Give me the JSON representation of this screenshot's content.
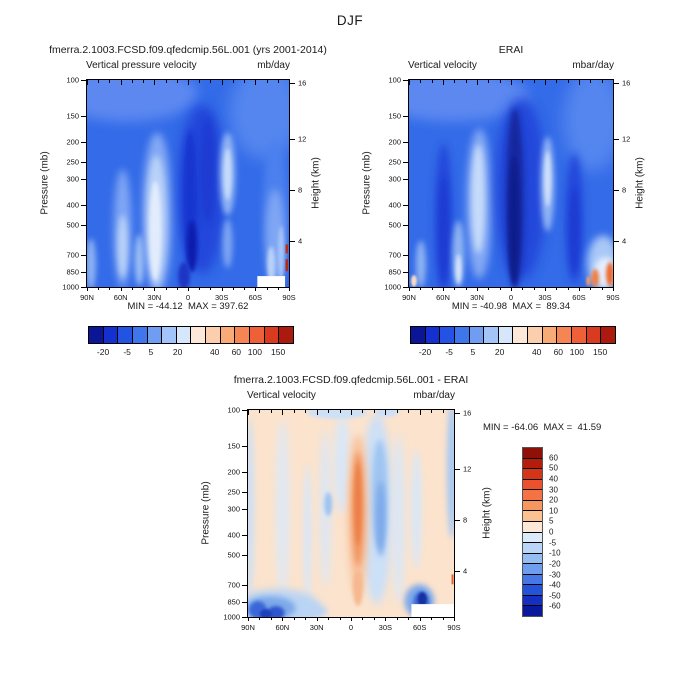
{
  "page_title": "DJF",
  "axes": {
    "pressure_label": "Pressure (mb)",
    "height_label": "Height (km)",
    "pressure_ticks": [
      100,
      150,
      200,
      250,
      300,
      400,
      500,
      700,
      850,
      1000
    ],
    "height_ticks": [
      16,
      12,
      8,
      4
    ],
    "lat_labels": [
      "90N",
      "60N",
      "30N",
      "0",
      "30S",
      "60S",
      "90S"
    ]
  },
  "panels": [
    {
      "id": "model",
      "title": "fmerra.2.1003.FCSD.f09.qfedcmip.56L.001 (yrs 2001-2014)",
      "subtitle_left": "Vertical pressure velocity",
      "subtitle_right": "mb/day",
      "stats": "MIN = -44.12  MAX = 397.62",
      "min": -44.12,
      "max": 397.62
    },
    {
      "id": "erai",
      "title": "ERAI",
      "subtitle_left": "Vertical velocity",
      "subtitle_right": "mbar/day",
      "stats": "MIN = -40.98  MAX =  89.34",
      "min": -40.98,
      "max": 89.34
    },
    {
      "id": "difference",
      "title": "fmerra.2.1003.FCSD.f09.qfedcmip.56L.001 - ERAI",
      "subtitle_left": "Vertical velocity",
      "subtitle_right": "mbar/day",
      "stats": "MIN = -64.06  MAX =  41.59",
      "min": -64.06,
      "max": 41.59
    }
  ],
  "colorbar_horizontal": {
    "colors": [
      "#0b1697",
      "#1430cf",
      "#2353e2",
      "#3f76ec",
      "#6f9df2",
      "#a3c4f8",
      "#d6e6fb",
      "#fde8d7",
      "#fbcfae",
      "#f9ab77",
      "#f58653",
      "#ee6038",
      "#d83b20",
      "#aa1a0f"
    ],
    "tick_labels": [
      "-20",
      "-5",
      "5",
      "20",
      "40",
      "60",
      "100",
      "150"
    ],
    "tick_pos_pct": [
      7.3,
      19,
      30.5,
      43.5,
      61.5,
      72,
      81,
      92.3
    ]
  },
  "colorbar_vertical": {
    "colors": [
      "#8e1006",
      "#b41d0c",
      "#d43418",
      "#ea512c",
      "#f37345",
      "#f79760",
      "#fbc191",
      "#fde8d7",
      "#dcebfa",
      "#b9d6f8",
      "#94bdf4",
      "#6e9cef",
      "#4577e6",
      "#2353d9",
      "#142fc2",
      "#0a189e"
    ],
    "tick_labels": [
      "60",
      "50",
      "40",
      "30",
      "20",
      "10",
      "5",
      "0",
      "-5",
      "-10",
      "-20",
      "-30",
      "-40",
      "-50",
      "-60"
    ]
  },
  "chart_data": [
    {
      "type": "heatmap",
      "title": "fmerra.2.1003.FCSD.f09.qfedcmip.56L.001 (yrs 2001-2014)",
      "variable": "Vertical pressure velocity",
      "units": "mb/day",
      "season": "DJF",
      "x_axis": "Latitude",
      "x_ticks": [
        "90N",
        "60N",
        "30N",
        "0",
        "30S",
        "60S",
        "90S"
      ],
      "y_axis": "Pressure (mb)",
      "y_scale": "log",
      "y_range": [
        100,
        1000
      ],
      "y_ticks": [
        100,
        150,
        200,
        250,
        300,
        400,
        500,
        700,
        850,
        1000
      ],
      "y2_axis": "Height (km)",
      "y2_ticks": [
        16,
        12,
        8,
        4
      ],
      "contour_labels": [
        -20,
        -5,
        5,
        20,
        40,
        60,
        100,
        150
      ],
      "min": -44.12,
      "max": 397.62,
      "lat_grid": [
        "90N",
        "75N",
        "60N",
        "45N",
        "30N",
        "15N",
        "0",
        "15S",
        "30S",
        "45S",
        "60S",
        "75S",
        "90S"
      ],
      "pressure_grid": [
        100,
        200,
        300,
        500,
        700,
        850,
        1000
      ],
      "values": [
        [
          -5,
          -5,
          -8,
          -5,
          -5,
          -10,
          -12,
          -12,
          -8,
          -5,
          -5,
          -5,
          -5
        ],
        [
          -8,
          -5,
          0,
          -5,
          10,
          -15,
          -25,
          -20,
          0,
          -8,
          -8,
          -3,
          -8
        ],
        [
          -8,
          -5,
          3,
          -3,
          20,
          -15,
          -30,
          -25,
          10,
          -10,
          -8,
          3,
          -8
        ],
        [
          -8,
          -3,
          5,
          0,
          25,
          -12,
          -35,
          -20,
          10,
          -8,
          -5,
          8,
          -5
        ],
        [
          -5,
          -2,
          8,
          5,
          22,
          -10,
          -44,
          -15,
          5,
          -5,
          -3,
          10,
          30
        ],
        [
          -3,
          0,
          10,
          8,
          20,
          -8,
          -35,
          -10,
          3,
          -5,
          -3,
          15,
          150
        ],
        [
          -2,
          2,
          8,
          5,
          15,
          -5,
          -20,
          -8,
          2,
          -3,
          -2,
          20,
          398
        ]
      ]
    },
    {
      "type": "heatmap",
      "title": "ERAI",
      "variable": "Vertical velocity",
      "units": "mbar/day",
      "season": "DJF",
      "x_axis": "Latitude",
      "x_ticks": [
        "90N",
        "60N",
        "30N",
        "0",
        "30S",
        "60S",
        "90S"
      ],
      "y_axis": "Pressure (mb)",
      "y_scale": "log",
      "y_range": [
        100,
        1000
      ],
      "y_ticks": [
        100,
        150,
        200,
        250,
        300,
        400,
        500,
        700,
        850,
        1000
      ],
      "y2_axis": "Height (km)",
      "y2_ticks": [
        16,
        12,
        8,
        4
      ],
      "contour_labels": [
        -20,
        -5,
        5,
        20,
        40,
        60,
        100,
        150
      ],
      "min": -40.98,
      "max": 89.34,
      "lat_grid": [
        "90N",
        "75N",
        "60N",
        "45N",
        "30N",
        "15N",
        "0",
        "15S",
        "30S",
        "45S",
        "60S",
        "75S",
        "90S"
      ],
      "pressure_grid": [
        100,
        200,
        300,
        500,
        700,
        850,
        1000
      ],
      "values": [
        [
          -5,
          -5,
          -8,
          -5,
          -5,
          -12,
          -15,
          -12,
          -8,
          -5,
          -5,
          -5,
          -5
        ],
        [
          -8,
          -5,
          -10,
          -3,
          8,
          -18,
          -30,
          -18,
          0,
          -8,
          -10,
          -3,
          -5
        ],
        [
          -8,
          -5,
          -15,
          -2,
          15,
          -20,
          -38,
          -20,
          8,
          -10,
          -15,
          0,
          -5
        ],
        [
          -8,
          -3,
          -18,
          2,
          20,
          -18,
          -41,
          -18,
          8,
          -8,
          -18,
          5,
          -3
        ],
        [
          -5,
          -2,
          -15,
          8,
          18,
          -20,
          -38,
          -12,
          5,
          -5,
          -12,
          10,
          5
        ],
        [
          -3,
          5,
          -12,
          10,
          15,
          -22,
          -30,
          -8,
          3,
          -3,
          -5,
          25,
          20
        ],
        [
          5,
          8,
          -8,
          8,
          10,
          -15,
          -20,
          -5,
          2,
          -2,
          -3,
          60,
          89
        ]
      ]
    },
    {
      "type": "heatmap",
      "title": "fmerra.2.1003.FCSD.f09.qfedcmip.56L.001 - ERAI",
      "variable": "Vertical velocity",
      "units": "mbar/day",
      "season": "DJF",
      "x_axis": "Latitude",
      "x_ticks": [
        "90N",
        "60N",
        "30N",
        "0",
        "30S",
        "60S",
        "90S"
      ],
      "y_axis": "Pressure (mb)",
      "y_scale": "log",
      "y_range": [
        100,
        1000
      ],
      "y_ticks": [
        100,
        150,
        200,
        250,
        300,
        400,
        500,
        700,
        850,
        1000
      ],
      "y2_axis": "Height (km)",
      "y2_ticks": [
        16,
        12,
        8,
        4
      ],
      "contour_labels": [
        60,
        50,
        40,
        30,
        20,
        10,
        5,
        0,
        -5,
        -10,
        -20,
        -30,
        -40,
        -50,
        -60
      ],
      "min": -64.06,
      "max": 41.59,
      "lat_grid": [
        "90N",
        "75N",
        "60N",
        "45N",
        "30N",
        "15N",
        "0",
        "15S",
        "30S",
        "45S",
        "60S",
        "75S",
        "90S"
      ],
      "pressure_grid": [
        100,
        200,
        300,
        500,
        700,
        850,
        1000
      ],
      "values": [
        [
          -5,
          2,
          3,
          3,
          3,
          -5,
          3,
          -8,
          -5,
          3,
          -8,
          3,
          -10
        ],
        [
          -8,
          3,
          3,
          3,
          3,
          3,
          10,
          -15,
          -5,
          -5,
          -8,
          3,
          -15
        ],
        [
          -5,
          3,
          3,
          3,
          3,
          3,
          25,
          -18,
          -5,
          -5,
          -5,
          3,
          -5
        ],
        [
          -5,
          3,
          5,
          3,
          3,
          3,
          42,
          -15,
          -5,
          -8,
          -3,
          3,
          3
        ],
        [
          -10,
          -5,
          3,
          3,
          3,
          3,
          25,
          -10,
          -3,
          -5,
          -10,
          -30,
          -5
        ],
        [
          -40,
          -30,
          -20,
          -10,
          -5,
          3,
          10,
          -5,
          -3,
          -3,
          -5,
          -55,
          -10
        ],
        [
          -55,
          -45,
          -25,
          -15,
          -5,
          3,
          5,
          -3,
          -2,
          -3,
          -5,
          -64,
          3
        ]
      ]
    }
  ]
}
